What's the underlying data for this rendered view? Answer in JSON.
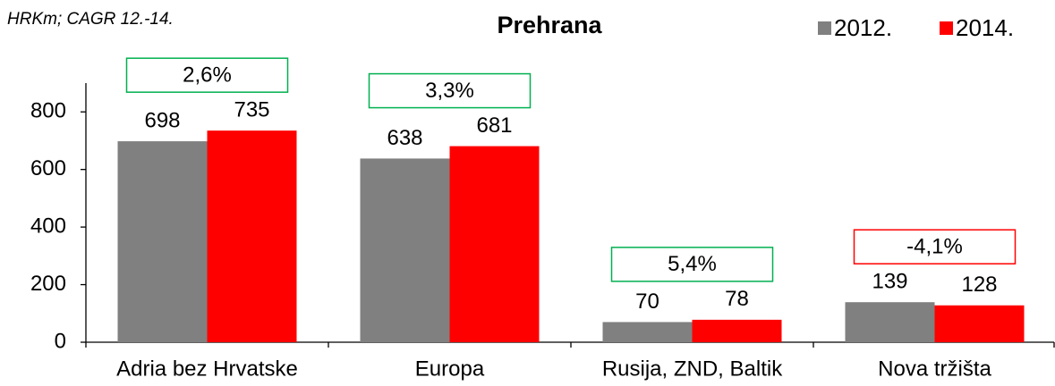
{
  "chart_data": {
    "type": "bar",
    "title": "Prehrana",
    "subtitle": "HRKm; CAGR 12.-14.",
    "categories": [
      "Adria bez Hrvatske",
      "Europa",
      "Rusija, ZND, Baltik",
      "Nova tržišta"
    ],
    "series": [
      {
        "name": "2012.",
        "color": "#808080",
        "values": [
          698,
          638,
          70,
          139
        ]
      },
      {
        "name": "2014.",
        "color": "#ff0000",
        "values": [
          735,
          681,
          78,
          128
        ]
      }
    ],
    "annotations": [
      {
        "text": "2,6%",
        "color": "#00b050"
      },
      {
        "text": "3,3%",
        "color": "#00b050"
      },
      {
        "text": "5,4%",
        "color": "#00b050"
      },
      {
        "text": "-4,1%",
        "color": "#ff0000"
      }
    ],
    "ylim": [
      0,
      900
    ],
    "yticks": [
      0,
      200,
      400,
      600,
      800
    ],
    "grid": false,
    "legend": "top-right"
  }
}
